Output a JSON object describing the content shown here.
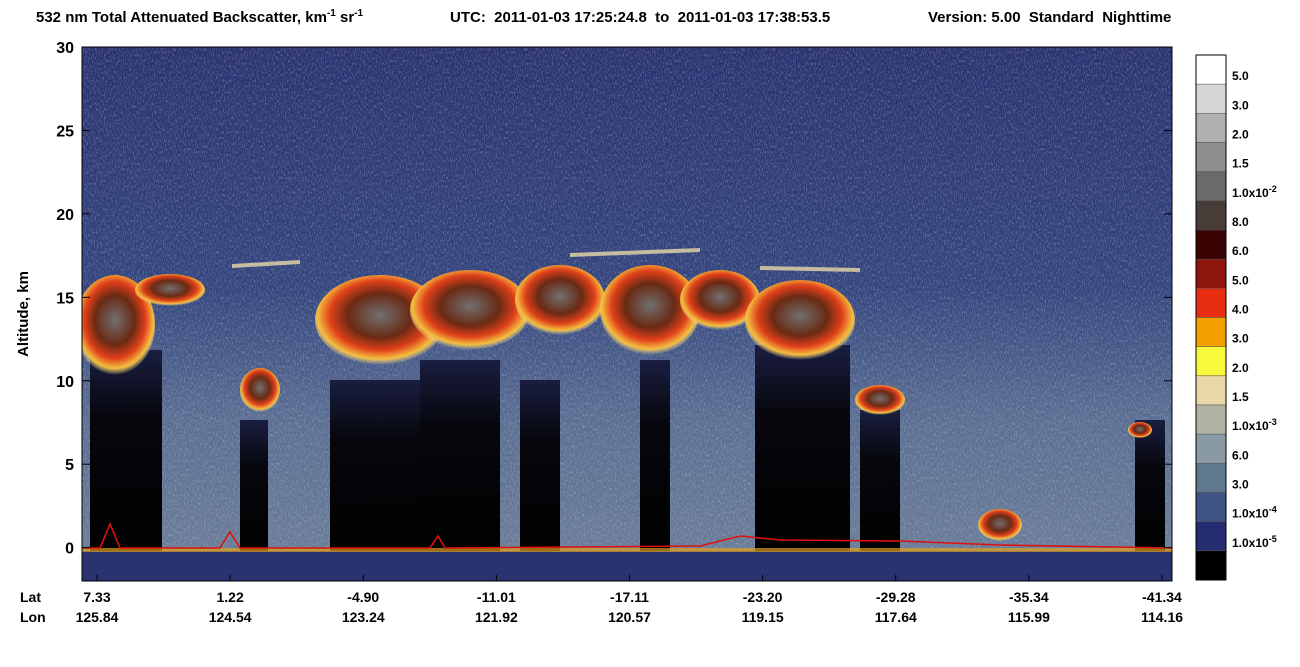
{
  "chart_data": {
    "type": "heatmap",
    "title": {
      "text": "532 nm Total Attenuated Backscatter, km",
      "exp1": "-1",
      "unit2": " sr",
      "exp2": "-1"
    },
    "utc": "UTC:  2011-01-03 17:25:24.8  to  2011-01-03 17:38:53.5",
    "version": "Version: 5.00  Standard  Nighttime",
    "ylabel": "Altitude, km",
    "ylim": [
      -2,
      30
    ],
    "yticks": [
      0,
      5,
      10,
      15,
      20,
      25,
      30
    ],
    "lat_label": "Lat",
    "lon_label": "Lon",
    "lat": [
      "7.33",
      "1.22",
      "-4.90",
      "-11.01",
      "-17.11",
      "-23.20",
      "-29.28",
      "-35.34",
      "-41.34"
    ],
    "lon": [
      "125.84",
      "124.54",
      "123.24",
      "121.92",
      "120.57",
      "119.15",
      "117.64",
      "115.99",
      "114.16"
    ],
    "colorbar": {
      "colors": [
        "#ffffff",
        "#d6d6d6",
        "#b0b0b0",
        "#8e8e8e",
        "#6a6a6a",
        "#483c38",
        "#3a0404",
        "#8c160e",
        "#e82c10",
        "#f4a000",
        "#f8f83c",
        "#e8d8a8",
        "#b0b2a4",
        "#8a9aa4",
        "#60788e",
        "#3e5284",
        "#262c70",
        "#000000"
      ],
      "labels": [
        {
          "text": "5.0"
        },
        {
          "text": "3.0"
        },
        {
          "text": "2.0"
        },
        {
          "text": "1.5"
        },
        {
          "text": "1.0x10",
          "exp": "-2"
        },
        {
          "text": "8.0"
        },
        {
          "text": "6.0"
        },
        {
          "text": "5.0"
        },
        {
          "text": "4.0"
        },
        {
          "text": "3.0"
        },
        {
          "text": "2.0"
        },
        {
          "text": "1.5"
        },
        {
          "text": "1.0x10",
          "exp": "-3"
        },
        {
          "text": "6.0"
        },
        {
          "text": "3.0"
        },
        {
          "text": "1.0x10",
          "exp": "-4"
        },
        {
          "text": "1.0x10",
          "exp": "-5"
        }
      ]
    }
  }
}
